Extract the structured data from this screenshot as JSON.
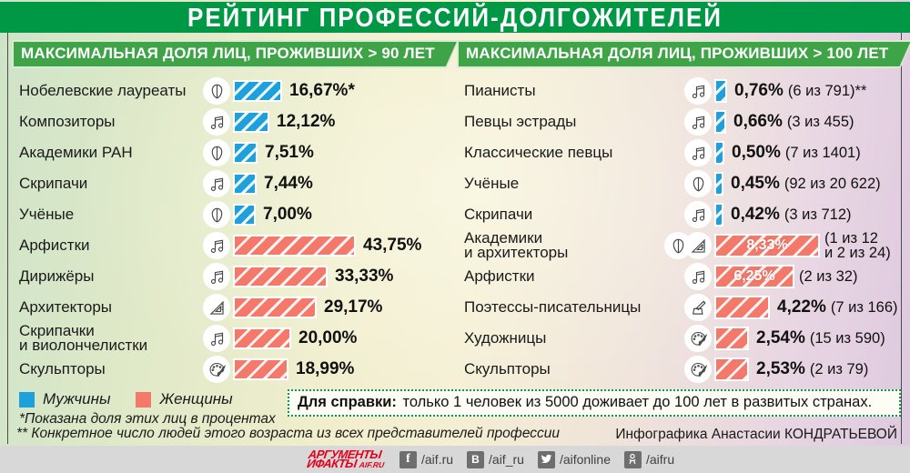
{
  "title": "РЕЙТИНГ ПРОФЕССИЙ-ДОЛГОЖИТЕЛЕЙ",
  "colors": {
    "men": "#1EA0DC",
    "women": "#F4796B",
    "title_bg": "#009845",
    "ribbon_bg": "#3FA447",
    "reference_border": "#0B9A4A",
    "logo_red": "#E3001B"
  },
  "panels": {
    "left": {
      "header": "МАКСИМАЛЬНАЯ ДОЛЯ ЛИЦ, ПРОЖИВШИХ > 90 ЛЕТ",
      "rows": [
        {
          "label": "Нобелевские лауреаты",
          "icons": [
            "brain"
          ],
          "gender": "men",
          "value": 16.67,
          "value_label": "16,67%*",
          "detail": ""
        },
        {
          "label": "Композиторы",
          "icons": [
            "music-note"
          ],
          "gender": "men",
          "value": 12.12,
          "value_label": "12,12%",
          "detail": ""
        },
        {
          "label": "Академики РАН",
          "icons": [
            "brain"
          ],
          "gender": "men",
          "value": 7.51,
          "value_label": "7,51%",
          "detail": ""
        },
        {
          "label": "Скрипачи",
          "icons": [
            "music-note"
          ],
          "gender": "men",
          "value": 7.44,
          "value_label": "7,44%",
          "detail": ""
        },
        {
          "label": "Учёные",
          "icons": [
            "brain"
          ],
          "gender": "men",
          "value": 7.0,
          "value_label": "7,00%",
          "detail": ""
        },
        {
          "label": "Арфистки",
          "icons": [
            "music-note"
          ],
          "gender": "women",
          "value": 43.75,
          "value_label": "43,75%",
          "detail": ""
        },
        {
          "label": "Дирижёры",
          "icons": [
            "music-note"
          ],
          "gender": "women",
          "value": 33.33,
          "value_label": "33,33%",
          "detail": ""
        },
        {
          "label": "Архитекторы",
          "icons": [
            "set-square"
          ],
          "gender": "women",
          "value": 29.17,
          "value_label": "29,17%",
          "detail": ""
        },
        {
          "label": "Скрипачки\nи виолончелистки",
          "icons": [
            "music-note"
          ],
          "gender": "women",
          "value": 20.0,
          "value_label": "20,00%",
          "detail": ""
        },
        {
          "label": "Скульпторы",
          "icons": [
            "palette"
          ],
          "gender": "women",
          "value": 18.99,
          "value_label": "18,99%",
          "detail": ""
        }
      ]
    },
    "right": {
      "header": "МАКСИМАЛЬНАЯ ДОЛЯ ЛИЦ, ПРОЖИВШИХ > 100 ЛЕТ",
      "rows": [
        {
          "label": "Пианисты",
          "icons": [
            "music-note"
          ],
          "gender": "men",
          "value": 0.76,
          "value_label": "0,76%",
          "detail": "(6 из 791)**"
        },
        {
          "label": "Певцы эстрады",
          "icons": [
            "music-note"
          ],
          "gender": "men",
          "value": 0.66,
          "value_label": "0,66%",
          "detail": "(3 из 455)"
        },
        {
          "label": "Классические певцы",
          "icons": [
            "music-note"
          ],
          "gender": "men",
          "value": 0.5,
          "value_label": "0,50%",
          "detail": "(7 из 1401)"
        },
        {
          "label": "Учёные",
          "icons": [
            "brain"
          ],
          "gender": "men",
          "value": 0.45,
          "value_label": "0,45%",
          "detail": "(92 из 20 622)"
        },
        {
          "label": "Скрипачи",
          "icons": [
            "music-note"
          ],
          "gender": "men",
          "value": 0.42,
          "value_label": "0,42%",
          "detail": "(3 из 712)"
        },
        {
          "label": "Академики\nи архитекторы",
          "icons": [
            "brain",
            "set-square"
          ],
          "gender": "women",
          "value": 8.33,
          "value_label": "8,33%",
          "label_inside": true,
          "detail": "(1 из 12\nи 2 из 24)"
        },
        {
          "label": "Арфистки",
          "icons": [
            "music-note"
          ],
          "gender": "women",
          "value": 6.25,
          "value_label": "6,25%",
          "label_inside": true,
          "detail": "(2 из 32)"
        },
        {
          "label": "Поэтессы-писательницы",
          "icons": [
            "inkwell-pen"
          ],
          "gender": "women",
          "value": 4.22,
          "value_label": "4,22%",
          "detail": "(7 из 166)"
        },
        {
          "label": "Художницы",
          "icons": [
            "palette"
          ],
          "gender": "women",
          "value": 2.54,
          "value_label": "2,54%",
          "detail": "(15 из 590)"
        },
        {
          "label": "Скульпторы",
          "icons": [
            "palette"
          ],
          "gender": "women",
          "value": 2.53,
          "value_label": "2,53%",
          "detail": "(2 из 79)"
        }
      ]
    }
  },
  "legend": {
    "men": "Мужчины",
    "women": "Женщины"
  },
  "footnotes": {
    "first": "*Показана доля этих лиц в процентах",
    "second": "** Конкретное число людей этого возраста из всех представителей профессии"
  },
  "reference": {
    "prefix": "Для справки:",
    "text": "только 1 человек из 5000 доживает до 100 лет в развитых странах."
  },
  "credit": "Инфографика Анастасии КОНДРАТЬЕВОЙ",
  "footer": {
    "logo": {
      "line1": "АРГУМЕНТЫ",
      "line2": "ИФАКТЫ",
      "site": "AIF.RU"
    },
    "social": [
      {
        "icon": "facebook",
        "handle": "/aif.ru"
      },
      {
        "icon": "vk",
        "handle": "/aif_ru"
      },
      {
        "icon": "twitter",
        "handle": "/aifonline"
      },
      {
        "icon": "odnoklassniki",
        "handle": "/aifru"
      }
    ]
  },
  "chart_data": [
    {
      "type": "bar",
      "title": "МАКСИМАЛЬНАЯ ДОЛЯ ЛИЦ, ПРОЖИВШИХ > 90 ЛЕТ",
      "unit": "%",
      "orientation": "horizontal",
      "categories": [
        "Нобелевские лауреаты",
        "Композиторы",
        "Академики РАН",
        "Скрипачи",
        "Учёные",
        "Арфистки",
        "Дирижёры",
        "Архитекторы",
        "Скрипачки и виолончелистки",
        "Скульпторы"
      ],
      "values": [
        16.67,
        12.12,
        7.51,
        7.44,
        7.0,
        43.75,
        33.33,
        29.17,
        20.0,
        18.99
      ],
      "group": [
        "Мужчины",
        "Мужчины",
        "Мужчины",
        "Мужчины",
        "Мужчины",
        "Женщины",
        "Женщины",
        "Женщины",
        "Женщины",
        "Женщины"
      ],
      "legend": [
        "Мужчины",
        "Женщины"
      ],
      "legend_position": "bottom-left"
    },
    {
      "type": "bar",
      "title": "МАКСИМАЛЬНАЯ ДОЛЯ ЛИЦ, ПРОЖИВШИХ > 100 ЛЕТ",
      "unit": "%",
      "orientation": "horizontal",
      "categories": [
        "Пианисты",
        "Певцы эстрады",
        "Классические певцы",
        "Учёные",
        "Скрипачи",
        "Академики и архитекторы",
        "Арфистки",
        "Поэтессы-писательницы",
        "Художницы",
        "Скульпторы"
      ],
      "values": [
        0.76,
        0.66,
        0.5,
        0.45,
        0.42,
        8.33,
        6.25,
        4.22,
        2.54,
        2.53
      ],
      "counts": [
        "6 из 791",
        "3 из 455",
        "7 из 1401",
        "92 из 20 622",
        "3 из 712",
        "1 из 12 и 2 из 24",
        "2 из 32",
        "7 из 166",
        "15 из 590",
        "2 из 79"
      ],
      "group": [
        "Мужчины",
        "Мужчины",
        "Мужчины",
        "Мужчины",
        "Мужчины",
        "Женщины",
        "Женщины",
        "Женщины",
        "Женщины",
        "Женщины"
      ],
      "legend": [
        "Мужчины",
        "Женщины"
      ],
      "legend_position": "bottom-left"
    }
  ]
}
